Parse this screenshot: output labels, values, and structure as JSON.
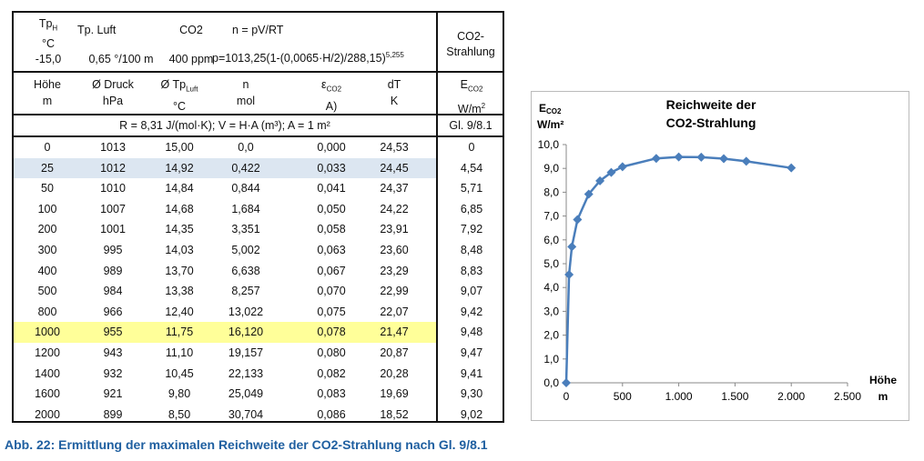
{
  "table": {
    "params": {
      "tph_label": "Tp",
      "tph_sub": "H",
      "tph_unit": "°C",
      "tph_value": "-15,0",
      "tpluft_label": "Tp. Luft",
      "tpluft_value": "0,65 °/100 m",
      "co2_label": "CO2",
      "co2_value": "400 ppm",
      "formula1": "n = pV/RT",
      "formula2": "p=1013,25(1-(0,0065·H/2)/288,15)",
      "formula2_exp": "5,255",
      "right_header": [
        "CO2-",
        "Strahlung"
      ]
    },
    "headers": [
      {
        "l1": "Höhe",
        "l2": "m"
      },
      {
        "l1": "Ø Druck",
        "l2": "hPa"
      },
      {
        "l1": "Ø Tp",
        "l1sub": "Luft",
        "l2": "°C"
      },
      {
        "l1": "n",
        "l2": "mol"
      },
      {
        "l1": "ε",
        "l1sub": "CO2",
        "l2": "A)"
      },
      {
        "l1": "dT",
        "l2": "K"
      },
      {
        "l1": "E",
        "l1sub": "CO2",
        "l2": "W/m",
        "l2sup": "2"
      }
    ],
    "constants": "R = 8,31 J/(mol·K); V = H·A (m³); A = 1 m²",
    "equation_ref": "Gl. 9/8.1",
    "rows": [
      [
        "0",
        "1013",
        "15,00",
        "0,0",
        "0,000",
        "24,53",
        "0"
      ],
      [
        "25",
        "1012",
        "14,92",
        "0,422",
        "0,033",
        "24,45",
        "4,54"
      ],
      [
        "50",
        "1010",
        "14,84",
        "0,844",
        "0,041",
        "24,37",
        "5,71"
      ],
      [
        "100",
        "1007",
        "14,68",
        "1,684",
        "0,050",
        "24,22",
        "6,85"
      ],
      [
        "200",
        "1001",
        "14,35",
        "3,351",
        "0,058",
        "23,91",
        "7,92"
      ],
      [
        "300",
        "995",
        "14,03",
        "5,002",
        "0,063",
        "23,60",
        "8,48"
      ],
      [
        "400",
        "989",
        "13,70",
        "6,638",
        "0,067",
        "23,29",
        "8,83"
      ],
      [
        "500",
        "984",
        "13,38",
        "8,257",
        "0,070",
        "22,99",
        "9,07"
      ],
      [
        "800",
        "966",
        "12,40",
        "13,022",
        "0,075",
        "22,07",
        "9,42"
      ],
      [
        "1000",
        "955",
        "11,75",
        "16,120",
        "0,078",
        "21,47",
        "9,48"
      ],
      [
        "1200",
        "943",
        "11,10",
        "19,157",
        "0,080",
        "20,87",
        "9,47"
      ],
      [
        "1400",
        "932",
        "10,45",
        "22,133",
        "0,082",
        "20,28",
        "9,41"
      ],
      [
        "1600",
        "921",
        "9,80",
        "25,049",
        "0,083",
        "19,69",
        "9,30"
      ],
      [
        "2000",
        "899",
        "8,50",
        "30,704",
        "0,086",
        "18,52",
        "9,02"
      ]
    ],
    "highlight_colors": {
      "1": "#dce6f1",
      "9": "#ffff99"
    }
  },
  "chart_data": {
    "type": "line",
    "title": [
      "Reichweite der",
      "CO2-Strahlung"
    ],
    "ylabel": [
      "E",
      "CO2",
      "W/m²"
    ],
    "xlabel": [
      "Höhe",
      "m"
    ],
    "x": [
      0,
      25,
      50,
      100,
      200,
      300,
      400,
      500,
      800,
      1000,
      1200,
      1400,
      1600,
      2000
    ],
    "values": [
      0,
      4.54,
      5.71,
      6.85,
      7.92,
      8.48,
      8.83,
      9.07,
      9.42,
      9.48,
      9.47,
      9.41,
      9.3,
      9.02
    ],
    "xlim": [
      0,
      2500
    ],
    "ylim": [
      0,
      10
    ],
    "xticks": [
      "0",
      "500",
      "1.000",
      "1.500",
      "2.000",
      "2.500"
    ],
    "yticks": [
      "0,0",
      "1,0",
      "2,0",
      "3,0",
      "4,0",
      "5,0",
      "6,0",
      "7,0",
      "8,0",
      "9,0",
      "10,0"
    ],
    "color": "#4a7ebb"
  },
  "caption": "Abb. 22: Ermittlung der maximalen Reichweite der CO2-Strahlung nach Gl. 9/8.1"
}
